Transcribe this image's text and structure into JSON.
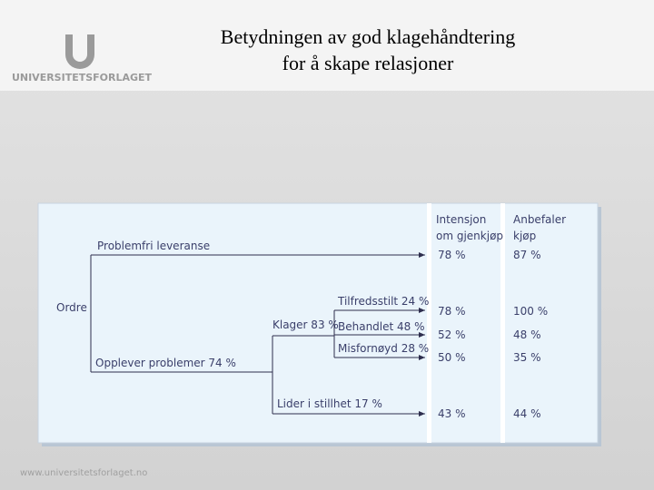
{
  "header": {
    "title": [
      "Betydningen av god klagehåndtering",
      "for å skape relasjoner"
    ],
    "logo": "UNIVERSITETSFORLAGET"
  },
  "footer": "www.universitetsforlaget.no",
  "diagram": {
    "columns": [
      [
        "Intensjon",
        "om gjenkjøp"
      ],
      [
        "Anbefaler",
        "kjøp"
      ]
    ],
    "root": "Ordre",
    "branches": [
      "Problemfri leveranse",
      "Opplever problemer 74 %",
      "Klager 83 %",
      "Lider i stillhet 17 %",
      "Tilfredsstilt 24 %",
      "Behandlet 48 %",
      "Misfornøyd 28 %"
    ],
    "rows": [
      {
        "label": "Problemfri leveranse",
        "values": [
          "78 %",
          "87 %"
        ]
      },
      {
        "label": "Tilfredsstilt 24 %",
        "values": [
          "78 %",
          "100 %"
        ]
      },
      {
        "label": "Behandlet 48 %",
        "values": [
          "52 %",
          "48 %"
        ]
      },
      {
        "label": "Misfornøyd 28 %",
        "values": [
          "50 %",
          "35 %"
        ]
      },
      {
        "label": "Lider i stillhet 17 %",
        "values": [
          "43 %",
          "44 %"
        ]
      }
    ]
  }
}
